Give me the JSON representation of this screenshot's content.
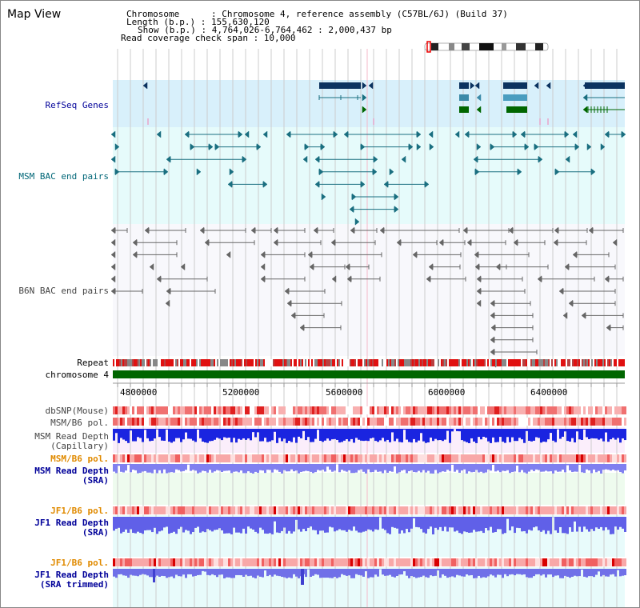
{
  "title": "Map View",
  "header": {
    "chromosome": "Chromosome      : Chromosome 4, reference assembly (C57BL/6J) (Build 37)",
    "length": "Length (b.p.) : 155,630,120",
    "show": "Show (b.p.) : 4,764,026-6,764,462 : 2,000,437 bp",
    "span": "Read coverage check span : 10,000"
  },
  "tracks": {
    "refseq": "RefSeq Genes",
    "msm_bac": "MSM BAC end pairs",
    "b6n_bac": "B6N BAC end pairs",
    "repeat": "Repeat",
    "chromosome": "chromosome 4",
    "dbsnp": "dbSNP(Mouse)",
    "msm_b6_pol_1": "MSM/B6 pol.",
    "msm_read_depth_cap_1": "MSM Read Depth",
    "msm_read_depth_cap_2": "(Capillary)",
    "msm_b6_pol_2": "MSM/B6 pol.",
    "msm_read_depth_sra_1": "MSM Read Depth",
    "msm_read_depth_sra_2": "(SRA)",
    "jf1_b6_pol_1": "JF1/B6 pol.",
    "jf1_read_depth_sra_1": "JF1 Read Depth",
    "jf1_read_depth_sra_2": "(SRA)",
    "jf1_b6_pol_2": "JF1/B6 pol.",
    "jf1_read_depth_trim_1": "JF1 Read Depth",
    "jf1_read_depth_trim_2": "(SRA trimmed)"
  },
  "axis_ticks": [
    "4800000",
    "5200000",
    "5600000",
    "6000000",
    "6400000"
  ],
  "colors": {
    "refseq_bg": "#d8f0fb",
    "msm_bg": "#e6fbfb",
    "b6n_bg": "#f7f7fb",
    "teal": "#1a6f80",
    "navy": "#0c3360",
    "gene_green": "#006600",
    "chromosome_green": "#006600",
    "label_blue": "#000099",
    "label_teal": "#006677",
    "label_orange": "#e08a00",
    "label_gray": "#444444"
  }
}
